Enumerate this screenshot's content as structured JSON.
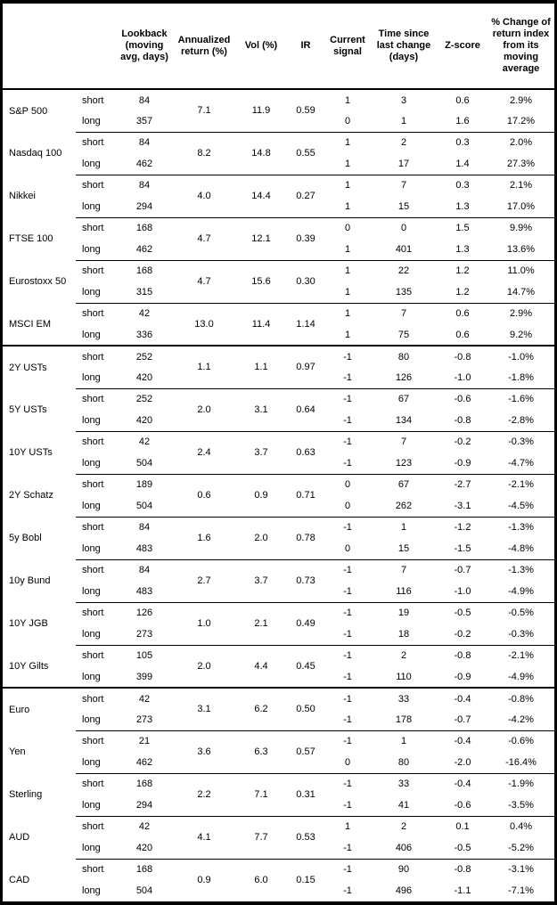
{
  "chart_data": {
    "type": "table",
    "headers": [
      "",
      "",
      "Lookback (moving avg, days)",
      "Annualized return (%)",
      "Vol (%)",
      "IR",
      "Current signal",
      "Time since last change (days)",
      "Z-score",
      "% Change of return index from its moving average"
    ],
    "groups": [
      {
        "name": "S&P 500",
        "section_start": false,
        "ret": "7.1",
        "vol": "11.9",
        "ir": "0.59",
        "rows": [
          {
            "horizon": "short",
            "lookback": "84",
            "signal": "1",
            "days": "3",
            "z": "0.6",
            "pct": "2.9%"
          },
          {
            "horizon": "long",
            "lookback": "357",
            "signal": "0",
            "days": "1",
            "z": "1.6",
            "pct": "17.2%"
          }
        ]
      },
      {
        "name": "Nasdaq 100",
        "section_start": false,
        "ret": "8.2",
        "vol": "14.8",
        "ir": "0.55",
        "rows": [
          {
            "horizon": "short",
            "lookback": "84",
            "signal": "1",
            "days": "2",
            "z": "0.3",
            "pct": "2.0%"
          },
          {
            "horizon": "long",
            "lookback": "462",
            "signal": "1",
            "days": "17",
            "z": "1.4",
            "pct": "27.3%"
          }
        ]
      },
      {
        "name": "Nikkei",
        "section_start": false,
        "ret": "4.0",
        "vol": "14.4",
        "ir": "0.27",
        "rows": [
          {
            "horizon": "short",
            "lookback": "84",
            "signal": "1",
            "days": "7",
            "z": "0.3",
            "pct": "2.1%"
          },
          {
            "horizon": "long",
            "lookback": "294",
            "signal": "1",
            "days": "15",
            "z": "1.3",
            "pct": "17.0%"
          }
        ]
      },
      {
        "name": "FTSE 100",
        "section_start": false,
        "ret": "4.7",
        "vol": "12.1",
        "ir": "0.39",
        "rows": [
          {
            "horizon": "short",
            "lookback": "168",
            "signal": "0",
            "days": "0",
            "z": "1.5",
            "pct": "9.9%"
          },
          {
            "horizon": "long",
            "lookback": "462",
            "signal": "1",
            "days": "401",
            "z": "1.3",
            "pct": "13.6%"
          }
        ]
      },
      {
        "name": "Eurostoxx 50",
        "section_start": false,
        "ret": "4.7",
        "vol": "15.6",
        "ir": "0.30",
        "rows": [
          {
            "horizon": "short",
            "lookback": "168",
            "signal": "1",
            "days": "22",
            "z": "1.2",
            "pct": "11.0%"
          },
          {
            "horizon": "long",
            "lookback": "315",
            "signal": "1",
            "days": "135",
            "z": "1.2",
            "pct": "14.7%"
          }
        ]
      },
      {
        "name": "MSCI EM",
        "section_start": false,
        "ret": "13.0",
        "vol": "11.4",
        "ir": "1.14",
        "rows": [
          {
            "horizon": "short",
            "lookback": "42",
            "signal": "1",
            "days": "7",
            "z": "0.6",
            "pct": "2.9%"
          },
          {
            "horizon": "long",
            "lookback": "336",
            "signal": "1",
            "days": "75",
            "z": "0.6",
            "pct": "9.2%"
          }
        ]
      },
      {
        "name": "2Y USTs",
        "section_start": true,
        "ret": "1.1",
        "vol": "1.1",
        "ir": "0.97",
        "rows": [
          {
            "horizon": "short",
            "lookback": "252",
            "signal": "-1",
            "days": "80",
            "z": "-0.8",
            "pct": "-1.0%"
          },
          {
            "horizon": "long",
            "lookback": "420",
            "signal": "-1",
            "days": "126",
            "z": "-1.0",
            "pct": "-1.8%"
          }
        ]
      },
      {
        "name": "5Y USTs",
        "section_start": false,
        "ret": "2.0",
        "vol": "3.1",
        "ir": "0.64",
        "rows": [
          {
            "horizon": "short",
            "lookback": "252",
            "signal": "-1",
            "days": "67",
            "z": "-0.6",
            "pct": "-1.6%"
          },
          {
            "horizon": "long",
            "lookback": "420",
            "signal": "-1",
            "days": "134",
            "z": "-0.8",
            "pct": "-2.8%"
          }
        ]
      },
      {
        "name": "10Y USTs",
        "section_start": false,
        "ret": "2.4",
        "vol": "3.7",
        "ir": "0.63",
        "rows": [
          {
            "horizon": "short",
            "lookback": "42",
            "signal": "-1",
            "days": "7",
            "z": "-0.2",
            "pct": "-0.3%"
          },
          {
            "horizon": "long",
            "lookback": "504",
            "signal": "-1",
            "days": "123",
            "z": "-0.9",
            "pct": "-4.7%"
          }
        ]
      },
      {
        "name": "2Y Schatz",
        "section_start": false,
        "ret": "0.6",
        "vol": "0.9",
        "ir": "0.71",
        "rows": [
          {
            "horizon": "short",
            "lookback": "189",
            "signal": "0",
            "days": "67",
            "z": "-2.7",
            "pct": "-2.1%"
          },
          {
            "horizon": "long",
            "lookback": "504",
            "signal": "0",
            "days": "262",
            "z": "-3.1",
            "pct": "-4.5%"
          }
        ]
      },
      {
        "name": "5y Bobl",
        "section_start": false,
        "ret": "1.6",
        "vol": "2.0",
        "ir": "0.78",
        "rows": [
          {
            "horizon": "short",
            "lookback": "84",
            "signal": "-1",
            "days": "1",
            "z": "-1.2",
            "pct": "-1.3%"
          },
          {
            "horizon": "long",
            "lookback": "483",
            "signal": "0",
            "days": "15",
            "z": "-1.5",
            "pct": "-4.8%"
          }
        ]
      },
      {
        "name": "10y Bund",
        "section_start": false,
        "ret": "2.7",
        "vol": "3.7",
        "ir": "0.73",
        "rows": [
          {
            "horizon": "short",
            "lookback": "84",
            "signal": "-1",
            "days": "7",
            "z": "-0.7",
            "pct": "-1.3%"
          },
          {
            "horizon": "long",
            "lookback": "483",
            "signal": "-1",
            "days": "116",
            "z": "-1.0",
            "pct": "-4.9%"
          }
        ]
      },
      {
        "name": "10Y JGB",
        "section_start": false,
        "ret": "1.0",
        "vol": "2.1",
        "ir": "0.49",
        "rows": [
          {
            "horizon": "short",
            "lookback": "126",
            "signal": "-1",
            "days": "19",
            "z": "-0.5",
            "pct": "-0.5%"
          },
          {
            "horizon": "long",
            "lookback": "273",
            "signal": "-1",
            "days": "18",
            "z": "-0.2",
            "pct": "-0.3%"
          }
        ]
      },
      {
        "name": "10Y Gilts",
        "section_start": false,
        "ret": "2.0",
        "vol": "4.4",
        "ir": "0.45",
        "rows": [
          {
            "horizon": "short",
            "lookback": "105",
            "signal": "-1",
            "days": "2",
            "z": "-0.8",
            "pct": "-2.1%"
          },
          {
            "horizon": "long",
            "lookback": "399",
            "signal": "-1",
            "days": "110",
            "z": "-0.9",
            "pct": "-4.9%"
          }
        ]
      },
      {
        "name": "Euro",
        "section_start": true,
        "ret": "3.1",
        "vol": "6.2",
        "ir": "0.50",
        "rows": [
          {
            "horizon": "short",
            "lookback": "42",
            "signal": "-1",
            "days": "33",
            "z": "-0.4",
            "pct": "-0.8%"
          },
          {
            "horizon": "long",
            "lookback": "273",
            "signal": "-1",
            "days": "178",
            "z": "-0.7",
            "pct": "-4.2%"
          }
        ]
      },
      {
        "name": "Yen",
        "section_start": false,
        "ret": "3.6",
        "vol": "6.3",
        "ir": "0.57",
        "rows": [
          {
            "horizon": "short",
            "lookback": "21",
            "signal": "-1",
            "days": "1",
            "z": "-0.4",
            "pct": "-0.6%"
          },
          {
            "horizon": "long",
            "lookback": "462",
            "signal": "0",
            "days": "80",
            "z": "-2.0",
            "pct": "-16.4%"
          }
        ]
      },
      {
        "name": "Sterling",
        "section_start": false,
        "ret": "2.2",
        "vol": "7.1",
        "ir": "0.31",
        "rows": [
          {
            "horizon": "short",
            "lookback": "168",
            "signal": "-1",
            "days": "33",
            "z": "-0.4",
            "pct": "-1.9%"
          },
          {
            "horizon": "long",
            "lookback": "294",
            "signal": "-1",
            "days": "41",
            "z": "-0.6",
            "pct": "-3.5%"
          }
        ]
      },
      {
        "name": "AUD",
        "section_start": false,
        "ret": "4.1",
        "vol": "7.7",
        "ir": "0.53",
        "rows": [
          {
            "horizon": "short",
            "lookback": "42",
            "signal": "1",
            "days": "2",
            "z": "0.1",
            "pct": "0.4%"
          },
          {
            "horizon": "long",
            "lookback": "420",
            "signal": "-1",
            "days": "406",
            "z": "-0.5",
            "pct": "-5.2%"
          }
        ]
      },
      {
        "name": "CAD",
        "section_start": false,
        "ret": "0.9",
        "vol": "6.0",
        "ir": "0.15",
        "rows": [
          {
            "horizon": "short",
            "lookback": "168",
            "signal": "-1",
            "days": "90",
            "z": "-0.8",
            "pct": "-3.1%"
          },
          {
            "horizon": "long",
            "lookback": "504",
            "signal": "-1",
            "days": "496",
            "z": "-1.1",
            "pct": "-7.1%"
          }
        ]
      }
    ]
  }
}
